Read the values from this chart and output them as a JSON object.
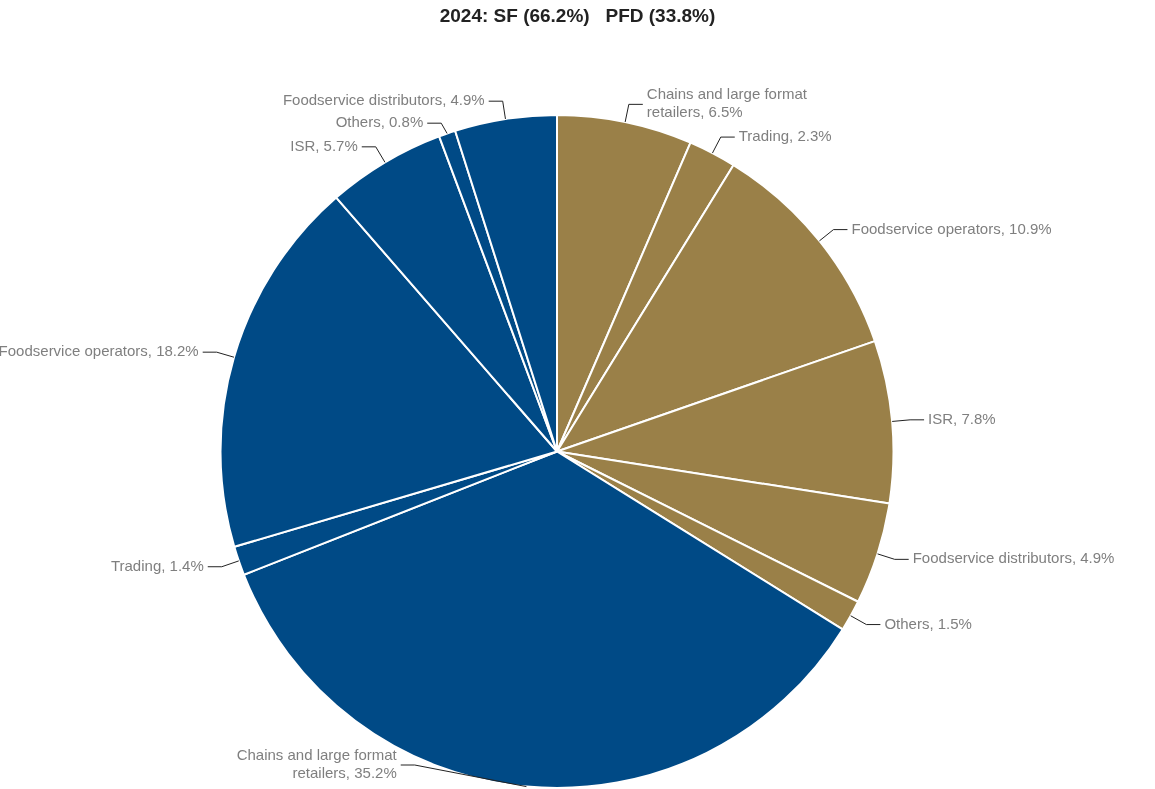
{
  "chart_data": {
    "type": "pie",
    "title": "2024: SF (66.2%)   PFD (33.8%)",
    "categories": [
      "Chains and large format retailers",
      "Trading",
      "Foodservice operators",
      "ISR",
      "Foodservice distributors",
      "Others",
      "Chains and large format retailers",
      "Trading",
      "Foodservice operators",
      "ISR",
      "Others",
      "Foodservice distributors"
    ],
    "values": [
      6.5,
      2.3,
      10.9,
      7.8,
      4.9,
      1.5,
      35.2,
      1.4,
      18.2,
      5.7,
      0.8,
      4.9
    ],
    "value_labels": [
      "6.5%",
      "2.3%",
      "10.9%",
      "7.8%",
      "4.9%",
      "1.5%",
      "35.2%",
      "1.4%",
      "18.2%",
      "5.7%",
      "0.8%",
      "4.9%"
    ],
    "colors": [
      "#9a8048",
      "#9a8048",
      "#9a8048",
      "#9a8048",
      "#9a8048",
      "#9a8048",
      "#004a86",
      "#004a86",
      "#004a86",
      "#004a86",
      "#004a86",
      "#004a86"
    ],
    "legend": false
  }
}
